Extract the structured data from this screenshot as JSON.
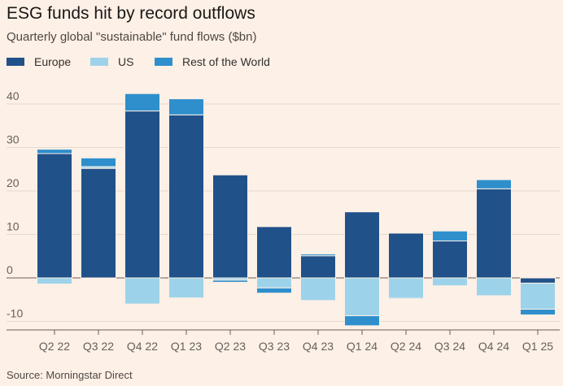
{
  "title": "ESG funds hit by record outflows",
  "subtitle": "Quarterly global \"sustainable\" fund flows ($bn)",
  "source": "Source: Morningstar Direct",
  "chart_data": {
    "type": "bar",
    "stacked": true,
    "categories": [
      "Q2 22",
      "Q3 22",
      "Q4 22",
      "Q1 23",
      "Q2 23",
      "Q3 23",
      "Q4 23",
      "Q1 24",
      "Q2 24",
      "Q3 24",
      "Q4 24",
      "Q1 25"
    ],
    "series": [
      {
        "name": "Europe",
        "color": "#215189",
        "values": [
          28.6,
          25.2,
          38.4,
          37.5,
          23.7,
          11.8,
          5.1,
          15.2,
          10.3,
          8.5,
          20.5,
          -1.2
        ]
      },
      {
        "name": "US",
        "color": "#9dd3ea",
        "values": [
          -1.4,
          0.4,
          -6.0,
          -4.6,
          -0.5,
          -2.3,
          -5.2,
          -8.7,
          -4.7,
          -1.8,
          -4.1,
          -6.0
        ]
      },
      {
        "name": "Rest of the World",
        "color": "#2e8fcc",
        "values": [
          1.0,
          2.0,
          4.0,
          3.7,
          -0.5,
          -1.2,
          0.4,
          -2.3,
          -0.2,
          2.3,
          2.1,
          -1.3
        ]
      }
    ],
    "ylim": [
      -11,
      44
    ],
    "yticks": [
      -10,
      0,
      10,
      20,
      30,
      40
    ],
    "xlabel": "",
    "ylabel": "",
    "legend_position": "top-left"
  }
}
